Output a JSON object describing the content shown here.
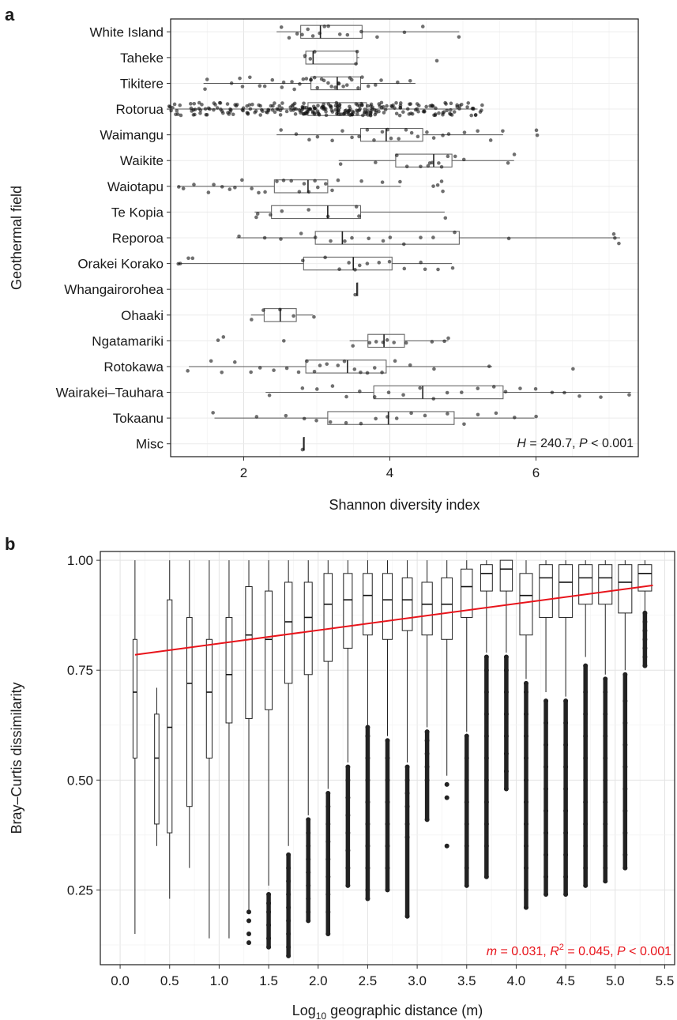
{
  "panel_labels": {
    "a": "a",
    "b": "b"
  },
  "chart_data": [
    {
      "type": "box",
      "panel": "a",
      "orientation": "horizontal",
      "xlabel": "Shannon diversity index",
      "ylabel": "Geothermal field",
      "xlim": [
        1.0,
        7.4
      ],
      "xticks": [
        2,
        4,
        6
      ],
      "xtick_labels": [
        "2",
        "4",
        "6"
      ],
      "grid": true,
      "annotation": {
        "parts": [
          "H",
          " = 240.7, ",
          "P",
          " < 0.001"
        ],
        "placement": "bottom-right"
      },
      "categories": [
        "White Island",
        "Taheke",
        "Tikitere",
        "Rotorua",
        "Waimangu",
        "Waikite",
        "Waiotapu",
        "Te Kopia",
        "Reporoa",
        "Orakei Korako",
        "Whangairorohea",
        "Ohaaki",
        "Ngatamariki",
        "Rotokawa",
        "Wairakei–Tauhara",
        "Tokaanu",
        "Misc"
      ],
      "boxes": [
        {
          "min": 2.45,
          "q1": 2.78,
          "median": 3.05,
          "q3": 3.62,
          "max": 4.95,
          "points": [
            2.5,
            2.6,
            2.75,
            2.82,
            2.9,
            2.97,
            3.05,
            3.1,
            3.18,
            3.3,
            3.4,
            3.6,
            3.85,
            4.2,
            4.45,
            4.95
          ]
        },
        {
          "min": 2.82,
          "q1": 2.85,
          "median": 2.95,
          "q3": 3.55,
          "max": 3.58,
          "points": [
            2.85,
            2.9,
            2.95,
            3.55,
            3.57,
            4.65
          ]
        },
        {
          "min": 1.45,
          "q1": 2.92,
          "median": 3.28,
          "q3": 3.6,
          "max": 4.35,
          "points": [
            1.45,
            1.5,
            1.85,
            1.95,
            2.0,
            2.1,
            2.2,
            2.3,
            2.4,
            2.5,
            2.55,
            2.65,
            2.7,
            2.75,
            2.8,
            2.85,
            2.9,
            2.92,
            2.95,
            3.0,
            3.05,
            3.1,
            3.15,
            3.2,
            3.25,
            3.28,
            3.3,
            3.35,
            3.4,
            3.45,
            3.5,
            3.55,
            3.6,
            3.7,
            3.8,
            3.9,
            4.1,
            4.3
          ]
        },
        {
          "min": 1.05,
          "q1": 2.88,
          "median": 3.28,
          "q3": 3.68,
          "max": 5.2,
          "dense": true,
          "points": [
            1.05,
            1.1,
            1.25,
            1.35,
            1.45,
            1.55,
            1.65,
            1.75,
            1.85,
            1.95,
            2.05,
            2.15,
            2.25,
            2.35,
            2.45,
            2.55,
            2.62,
            2.7,
            2.75,
            2.8,
            2.85,
            2.9,
            2.95,
            3.0,
            3.05,
            3.1,
            3.15,
            3.2,
            3.25,
            3.3,
            3.35,
            3.4,
            3.45,
            3.5,
            3.55,
            3.6,
            3.65,
            3.7,
            3.75,
            3.8,
            3.85,
            3.9,
            4.0,
            4.1,
            4.2,
            4.3,
            4.4,
            4.5,
            4.6,
            4.7,
            4.8,
            4.9,
            5.0,
            5.1,
            5.2
          ]
        },
        {
          "min": 2.45,
          "q1": 3.6,
          "median": 3.95,
          "q3": 4.45,
          "max": 5.55,
          "points": [
            2.5,
            2.7,
            2.9,
            3.0,
            3.2,
            3.35,
            3.5,
            3.6,
            3.7,
            3.8,
            3.9,
            3.95,
            4.0,
            4.1,
            4.2,
            4.3,
            4.4,
            4.5,
            4.6,
            4.7,
            4.8,
            5.0,
            5.2,
            5.4,
            5.55,
            6.0,
            6.02
          ]
        },
        {
          "min": 3.3,
          "q1": 4.08,
          "median": 4.6,
          "q3": 4.85,
          "max": 5.7,
          "points": [
            3.35,
            3.8,
            4.1,
            4.25,
            4.4,
            4.5,
            4.55,
            4.6,
            4.65,
            4.7,
            4.8,
            4.9,
            5.0,
            5.6,
            5.7
          ]
        },
        {
          "min": 1.1,
          "q1": 2.42,
          "median": 2.88,
          "q3": 3.15,
          "max": 4.15,
          "points": [
            1.1,
            1.15,
            1.3,
            1.5,
            1.6,
            1.7,
            1.8,
            1.9,
            2.0,
            2.1,
            2.2,
            2.3,
            2.45,
            2.55,
            2.65,
            2.75,
            2.85,
            2.9,
            2.95,
            3.0,
            3.1,
            3.2,
            3.3,
            3.6,
            3.9,
            4.15,
            4.6,
            4.65,
            4.7,
            4.72
          ]
        },
        {
          "min": 2.15,
          "q1": 2.38,
          "median": 3.15,
          "q3": 3.6,
          "max": 4.75,
          "points": [
            2.15,
            2.2,
            2.35,
            2.5,
            2.9,
            3.15,
            3.55,
            3.6,
            4.75
          ]
        },
        {
          "min": 1.9,
          "q1": 2.98,
          "median": 3.35,
          "q3": 4.95,
          "max": 7.15,
          "points": [
            1.95,
            2.3,
            2.5,
            2.8,
            3.0,
            3.2,
            3.4,
            3.5,
            3.7,
            3.9,
            4.0,
            4.2,
            4.4,
            4.6,
            4.9,
            5.65,
            7.05,
            7.1,
            7.15
          ]
        },
        {
          "min": 1.1,
          "q1": 2.82,
          "median": 3.5,
          "q3": 4.03,
          "max": 4.85,
          "points": [
            1.1,
            1.15,
            1.25,
            1.3,
            2.8,
            3.1,
            3.3,
            3.45,
            3.5,
            3.6,
            3.7,
            3.85,
            4.0,
            4.2,
            4.4,
            4.5,
            4.65,
            4.85
          ]
        },
        {
          "min": 3.55,
          "q1": 3.55,
          "median": 3.55,
          "q3": 3.55,
          "max": 3.55,
          "points": [
            3.55
          ]
        },
        {
          "min": 2.1,
          "q1": 2.28,
          "median": 2.5,
          "q3": 2.72,
          "max": 2.95,
          "points": [
            2.1,
            2.25,
            2.5,
            2.7,
            2.95
          ]
        },
        {
          "min": 3.45,
          "q1": 3.7,
          "median": 3.92,
          "q3": 4.2,
          "max": 4.8,
          "points": [
            1.65,
            1.7,
            2.55,
            3.5,
            3.7,
            3.8,
            3.9,
            3.95,
            4.05,
            4.2,
            4.6,
            4.75,
            4.8
          ]
        },
        {
          "min": 1.25,
          "q1": 2.85,
          "median": 3.42,
          "q3": 3.95,
          "max": 5.4,
          "points": [
            1.25,
            1.55,
            1.7,
            1.9,
            2.1,
            2.2,
            2.4,
            2.6,
            2.75,
            2.85,
            2.95,
            3.05,
            3.15,
            3.3,
            3.4,
            3.5,
            3.6,
            3.7,
            3.8,
            3.9,
            4.05,
            4.3,
            4.6,
            5.35,
            6.5
          ]
        },
        {
          "min": 2.3,
          "q1": 3.78,
          "median": 4.45,
          "q3": 5.55,
          "max": 7.3,
          "points": [
            2.35,
            2.8,
            3.0,
            3.2,
            3.4,
            3.6,
            3.8,
            4.0,
            4.2,
            4.4,
            4.6,
            4.8,
            5.0,
            5.2,
            5.4,
            5.6,
            5.8,
            6.0,
            6.2,
            6.4,
            6.6,
            6.9,
            7.3
          ]
        },
        {
          "min": 1.6,
          "q1": 3.15,
          "median": 3.98,
          "q3": 4.88,
          "max": 5.98,
          "points": [
            1.6,
            2.2,
            2.6,
            2.85,
            3.0,
            3.2,
            3.4,
            3.6,
            3.8,
            3.95,
            4.1,
            4.3,
            4.5,
            4.8,
            5.0,
            5.2,
            5.45,
            5.7,
            5.98
          ]
        },
        {
          "min": 2.82,
          "q1": 2.82,
          "median": 2.82,
          "q3": 2.82,
          "max": 2.82,
          "points": [
            2.82
          ]
        }
      ]
    },
    {
      "type": "box",
      "panel": "b",
      "orientation": "vertical",
      "xlabel": {
        "base": "Log",
        "sub": "10",
        "rest": " geographic distance (m)"
      },
      "ylabel": "Bray–Curtis dissimilarity",
      "xlim": [
        -0.2,
        5.6
      ],
      "ylim": [
        0.08,
        1.02
      ],
      "xticks": [
        0.0,
        0.5,
        1.0,
        1.5,
        2.0,
        2.5,
        3.0,
        3.5,
        4.0,
        4.5,
        5.0,
        5.5
      ],
      "xtick_labels": [
        "0.0",
        "0.5",
        "1.0",
        "1.5",
        "2.0",
        "2.5",
        "3.0",
        "3.5",
        "4.0",
        "4.5",
        "5.0",
        "5.5"
      ],
      "yticks": [
        0.25,
        0.5,
        0.75,
        1.0
      ],
      "ytick_labels": [
        "0.25",
        "0.50",
        "0.75",
        "1.00"
      ],
      "grid": true,
      "regression": {
        "x": [
          0.15,
          5.38
        ],
        "y": [
          0.785,
          0.943
        ],
        "color": "#e8141b"
      },
      "annotation": {
        "color": "#e8141b",
        "placement": "bottom-right",
        "parts": [
          "m",
          " = 0.031, ",
          "R",
          "2",
          " = 0.045, ",
          "P",
          " < 0.001"
        ]
      },
      "boxes": [
        {
          "x": 0.15,
          "min": 0.15,
          "q1": 0.55,
          "median": 0.7,
          "q3": 0.82,
          "max": 1.0,
          "outliers": []
        },
        {
          "x": 0.37,
          "min": 0.35,
          "q1": 0.4,
          "median": 0.55,
          "q3": 0.65,
          "max": 0.71,
          "outliers": []
        },
        {
          "x": 0.5,
          "min": 0.23,
          "q1": 0.38,
          "median": 0.62,
          "q3": 0.91,
          "max": 1.0,
          "outliers": []
        },
        {
          "x": 0.7,
          "min": 0.3,
          "q1": 0.44,
          "median": 0.72,
          "q3": 0.87,
          "max": 1.0,
          "outliers": []
        },
        {
          "x": 0.9,
          "min": 0.14,
          "q1": 0.55,
          "median": 0.7,
          "q3": 0.82,
          "max": 1.0,
          "outliers": []
        },
        {
          "x": 1.1,
          "min": 0.14,
          "q1": 0.63,
          "median": 0.74,
          "q3": 0.87,
          "max": 1.0,
          "outliers": []
        },
        {
          "x": 1.3,
          "min": 0.2,
          "q1": 0.64,
          "median": 0.83,
          "q3": 0.94,
          "max": 1.0,
          "outliers": [
            0.13,
            0.15,
            0.18,
            0.2
          ]
        },
        {
          "x": 1.5,
          "min": 0.26,
          "q1": 0.66,
          "median": 0.82,
          "q3": 0.93,
          "max": 1.0,
          "outliers": [
            0.12,
            0.14,
            0.17,
            0.2,
            0.22,
            0.24
          ]
        },
        {
          "x": 1.7,
          "min": 0.35,
          "q1": 0.72,
          "median": 0.86,
          "q3": 0.95,
          "max": 1.0,
          "outliers": [
            0.1,
            0.12,
            0.15,
            0.18,
            0.21,
            0.24,
            0.27,
            0.3,
            0.33
          ]
        },
        {
          "x": 1.9,
          "min": 0.42,
          "q1": 0.74,
          "median": 0.87,
          "q3": 0.95,
          "max": 1.0,
          "outliers": [
            0.18,
            0.2,
            0.23,
            0.26,
            0.29,
            0.32,
            0.35,
            0.38,
            0.41
          ]
        },
        {
          "x": 2.1,
          "min": 0.48,
          "q1": 0.77,
          "median": 0.9,
          "q3": 0.97,
          "max": 1.0,
          "outliers": [
            0.15,
            0.2,
            0.24,
            0.28,
            0.32,
            0.36,
            0.4,
            0.44,
            0.47
          ]
        },
        {
          "x": 2.3,
          "min": 0.54,
          "q1": 0.8,
          "median": 0.91,
          "q3": 0.97,
          "max": 1.0,
          "outliers": [
            0.26,
            0.3,
            0.34,
            0.38,
            0.42,
            0.46,
            0.5,
            0.53
          ]
        },
        {
          "x": 2.5,
          "min": 0.62,
          "q1": 0.83,
          "median": 0.92,
          "q3": 0.97,
          "max": 1.0,
          "outliers": [
            0.23,
            0.25,
            0.3,
            0.35,
            0.4,
            0.45,
            0.5,
            0.55,
            0.6,
            0.62
          ]
        },
        {
          "x": 2.7,
          "min": 0.6,
          "q1": 0.82,
          "median": 0.91,
          "q3": 0.97,
          "max": 1.0,
          "outliers": [
            0.25,
            0.3,
            0.35,
            0.4,
            0.45,
            0.5,
            0.55,
            0.59
          ]
        },
        {
          "x": 2.9,
          "min": 0.54,
          "q1": 0.84,
          "median": 0.91,
          "q3": 0.96,
          "max": 1.0,
          "outliers": [
            0.19,
            0.37,
            0.4,
            0.44,
            0.47,
            0.5,
            0.53
          ]
        },
        {
          "x": 3.1,
          "min": 0.62,
          "q1": 0.83,
          "median": 0.9,
          "q3": 0.95,
          "max": 1.0,
          "outliers": [
            0.41,
            0.5,
            0.53,
            0.56,
            0.59,
            0.61
          ]
        },
        {
          "x": 3.3,
          "min": 0.51,
          "q1": 0.82,
          "median": 0.9,
          "q3": 0.96,
          "max": 1.0,
          "outliers": [
            0.35,
            0.46,
            0.49
          ]
        },
        {
          "x": 3.5,
          "min": 0.61,
          "q1": 0.87,
          "median": 0.94,
          "q3": 0.98,
          "max": 1.0,
          "outliers": [
            0.26,
            0.3,
            0.35,
            0.4,
            0.45,
            0.5,
            0.55,
            0.6
          ]
        },
        {
          "x": 3.7,
          "min": 0.79,
          "q1": 0.93,
          "median": 0.97,
          "q3": 0.99,
          "max": 1.0,
          "outliers": [
            0.28,
            0.35,
            0.4,
            0.45,
            0.5,
            0.55,
            0.6,
            0.65,
            0.7,
            0.75,
            0.78
          ]
        },
        {
          "x": 3.9,
          "min": 0.79,
          "q1": 0.93,
          "median": 0.98,
          "q3": 1.0,
          "max": 1.0,
          "outliers": [
            0.48,
            0.52,
            0.56,
            0.6,
            0.65,
            0.7,
            0.75,
            0.78
          ]
        },
        {
          "x": 4.1,
          "min": 0.73,
          "q1": 0.83,
          "median": 0.92,
          "q3": 0.97,
          "max": 1.0,
          "outliers": [
            0.21,
            0.25,
            0.3,
            0.35,
            0.4,
            0.45,
            0.5,
            0.55,
            0.6,
            0.65,
            0.7,
            0.72
          ]
        },
        {
          "x": 4.3,
          "min": 0.7,
          "q1": 0.87,
          "median": 0.96,
          "q3": 0.99,
          "max": 1.0,
          "outliers": [
            0.24,
            0.28,
            0.33,
            0.38,
            0.43,
            0.48,
            0.53,
            0.58,
            0.63,
            0.68
          ]
        },
        {
          "x": 4.5,
          "min": 0.69,
          "q1": 0.87,
          "median": 0.95,
          "q3": 0.99,
          "max": 1.0,
          "outliers": [
            0.24,
            0.28,
            0.33,
            0.38,
            0.43,
            0.48,
            0.53,
            0.58,
            0.63,
            0.68
          ]
        },
        {
          "x": 4.7,
          "min": 0.78,
          "q1": 0.9,
          "median": 0.96,
          "q3": 0.99,
          "max": 1.0,
          "outliers": [
            0.26,
            0.3,
            0.35,
            0.4,
            0.45,
            0.5,
            0.55,
            0.6,
            0.65,
            0.7,
            0.76
          ]
        },
        {
          "x": 4.9,
          "min": 0.74,
          "q1": 0.9,
          "median": 0.96,
          "q3": 0.99,
          "max": 1.0,
          "outliers": [
            0.27,
            0.3,
            0.35,
            0.4,
            0.45,
            0.5,
            0.55,
            0.6,
            0.65,
            0.7,
            0.73
          ]
        },
        {
          "x": 5.1,
          "min": 0.75,
          "q1": 0.88,
          "median": 0.95,
          "q3": 0.99,
          "max": 1.0,
          "outliers": [
            0.3,
            0.33,
            0.38,
            0.43,
            0.48,
            0.53,
            0.58,
            0.63,
            0.68,
            0.74
          ]
        },
        {
          "x": 5.3,
          "min": 0.88,
          "q1": 0.93,
          "median": 0.97,
          "q3": 0.99,
          "max": 1.0,
          "outliers": [
            0.76,
            0.78,
            0.8,
            0.82,
            0.84,
            0.86,
            0.88
          ]
        }
      ]
    }
  ]
}
